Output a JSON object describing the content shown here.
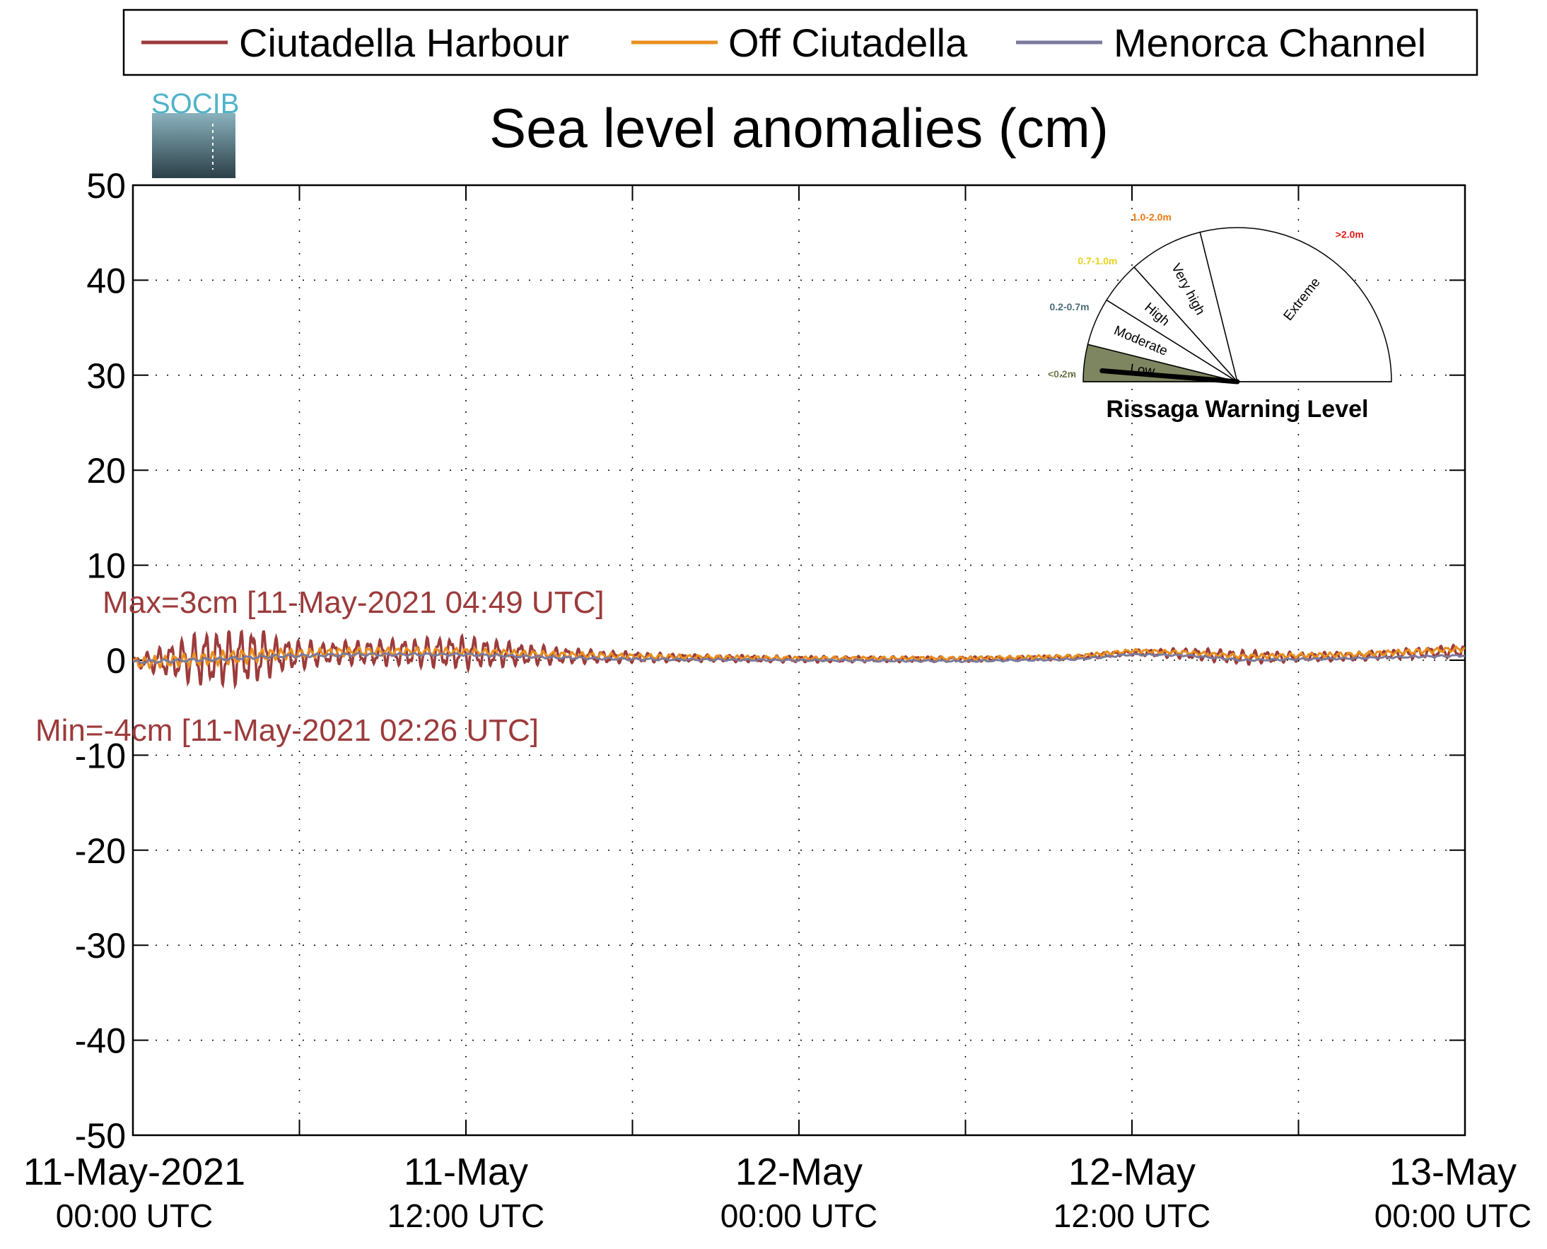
{
  "chart_data": {
    "type": "line",
    "title": "Sea level anomalies (cm)",
    "xlabel": "",
    "ylabel": "",
    "ylim": [
      -50,
      50
    ],
    "yticks": [
      50,
      40,
      30,
      20,
      10,
      0,
      -10,
      -20,
      -30,
      -40,
      -50
    ],
    "xlim_hours": [
      0,
      48
    ],
    "xtick_hours": [
      0,
      12,
      24,
      36,
      48
    ],
    "xtick_labels": [
      {
        "date": "11-May-2021",
        "time": "00:00 UTC"
      },
      {
        "date": "11-May",
        "time": "12:00 UTC"
      },
      {
        "date": "12-May",
        "time": "00:00 UTC"
      },
      {
        "date": "12-May",
        "time": "12:00 UTC"
      },
      {
        "date": "13-May",
        "time": "00:00 UTC"
      }
    ],
    "grid": true,
    "legend_position": "top",
    "series": [
      {
        "name": "Ciutadella Harbour",
        "color": "#9c3b3b",
        "oscillation_envelope": [
          [
            0,
            0.5
          ],
          [
            2,
            2.5
          ],
          [
            2.5,
            3
          ],
          [
            4.8,
            3
          ],
          [
            5,
            2
          ],
          [
            7,
            1.2
          ],
          [
            10,
            1.5
          ],
          [
            12,
            1.8
          ],
          [
            14,
            1.2
          ],
          [
            16,
            0.8
          ],
          [
            18,
            0.6
          ],
          [
            20,
            0.4
          ],
          [
            24,
            0.35
          ],
          [
            28,
            0.3
          ],
          [
            32,
            0.25
          ],
          [
            36,
            0.3
          ],
          [
            38,
            0.6
          ],
          [
            40,
            0.8
          ],
          [
            42,
            0.5
          ],
          [
            45,
            0.5
          ],
          [
            48,
            0.7
          ]
        ],
        "baseline": [
          [
            0,
            -0.2
          ],
          [
            3,
            0.2
          ],
          [
            5,
            0.5
          ],
          [
            8,
            0.8
          ],
          [
            12,
            0.8
          ],
          [
            15,
            0.5
          ],
          [
            18,
            0.3
          ],
          [
            24,
            0.1
          ],
          [
            30,
            0.1
          ],
          [
            34,
            0.3
          ],
          [
            36,
            0.8
          ],
          [
            38,
            0.7
          ],
          [
            40,
            0.3
          ],
          [
            44,
            0.4
          ],
          [
            48,
            1.0
          ]
        ],
        "max": 3,
        "min": -4
      },
      {
        "name": "Off Ciutadella",
        "color": "#e8901f",
        "oscillation_envelope": [
          [
            0,
            0.6
          ],
          [
            4,
            0.8
          ],
          [
            6,
            0.5
          ],
          [
            12,
            0.4
          ],
          [
            18,
            0.3
          ],
          [
            24,
            0.2
          ],
          [
            36,
            0.2
          ],
          [
            48,
            0.3
          ]
        ],
        "baseline": [
          [
            0,
            -0.3
          ],
          [
            3,
            0.2
          ],
          [
            5,
            0.6
          ],
          [
            8,
            0.9
          ],
          [
            12,
            0.9
          ],
          [
            15,
            0.6
          ],
          [
            18,
            0.4
          ],
          [
            24,
            0.2
          ],
          [
            30,
            0.2
          ],
          [
            34,
            0.4
          ],
          [
            36,
            1.0
          ],
          [
            38,
            0.8
          ],
          [
            40,
            0.4
          ],
          [
            44,
            0.6
          ],
          [
            48,
            1.2
          ]
        ]
      },
      {
        "name": "Menorca Channel",
        "color": "#7a7a9c",
        "oscillation_envelope": [
          [
            0,
            0.2
          ],
          [
            12,
            0.15
          ],
          [
            24,
            0.1
          ],
          [
            48,
            0.1
          ]
        ],
        "baseline": [
          [
            0,
            -0.2
          ],
          [
            3,
            0.1
          ],
          [
            5,
            0.4
          ],
          [
            8,
            0.6
          ],
          [
            12,
            0.6
          ],
          [
            15,
            0.3
          ],
          [
            18,
            0.1
          ],
          [
            24,
            0.0
          ],
          [
            30,
            -0.1
          ],
          [
            34,
            0.1
          ],
          [
            36,
            0.6
          ],
          [
            38,
            0.5
          ],
          [
            40,
            0.0
          ],
          [
            44,
            0.2
          ],
          [
            48,
            0.5
          ]
        ]
      }
    ],
    "annotations": {
      "max_text": "Max=3cm [11-May-2021 04:49 UTC]",
      "min_text": "Min=-4cm [11-May-2021 02:26 UTC]",
      "color": "#9c3b3b"
    }
  },
  "logo": {
    "text": "SOCIB",
    "color": "#4fb3c9"
  },
  "gauge": {
    "title": "Rissaga Warning Level",
    "sectors": [
      {
        "label": "Low",
        "range": "<0.2m",
        "range_color": "#6f7a4d",
        "fill": "#7d8660",
        "active": true
      },
      {
        "label": "Moderate",
        "range": "0.2-0.7m",
        "range_color": "#4a6a78",
        "fill": "#ffffff",
        "active": false
      },
      {
        "label": "High",
        "range": "0.7-1.0m",
        "range_color": "#e6d21c",
        "fill": "#ffffff",
        "active": false
      },
      {
        "label": "Very high",
        "range": "1.0-2.0m",
        "range_color": "#ee7a10",
        "fill": "#ffffff",
        "active": false
      },
      {
        "label": "Extreme",
        "range": ">2.0m",
        "range_color": "#e01818",
        "fill": "#ffffff",
        "active": false
      }
    ],
    "needle_value_m": 0.03
  }
}
